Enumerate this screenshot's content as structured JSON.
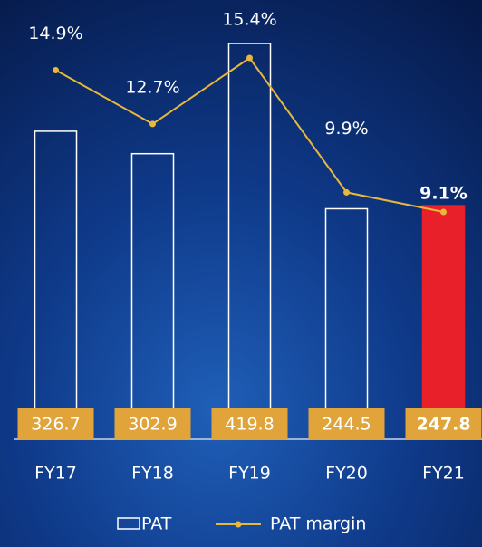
{
  "chart_data": {
    "type": "bar",
    "categories": [
      "FY17",
      "FY18",
      "FY19",
      "FY20",
      "FY21"
    ],
    "series": [
      {
        "name": "PAT",
        "color": "#ffffff",
        "fills": [
          "none",
          "none",
          "none",
          "none",
          "#e8202a"
        ],
        "values": [
          326.7,
          302.9,
          419.8,
          244.5,
          247.8
        ]
      },
      {
        "name": "PAT margin",
        "type": "line",
        "axis": "y2",
        "color": "#e8b83a",
        "values": [
          14.9,
          12.7,
          15.4,
          9.9,
          9.1
        ],
        "value_labels": [
          "14.9%",
          "12.7%",
          "15.4%",
          "9.9%",
          "9.1%"
        ]
      }
    ],
    "label_box_color": "#e0a43a"
  }
}
